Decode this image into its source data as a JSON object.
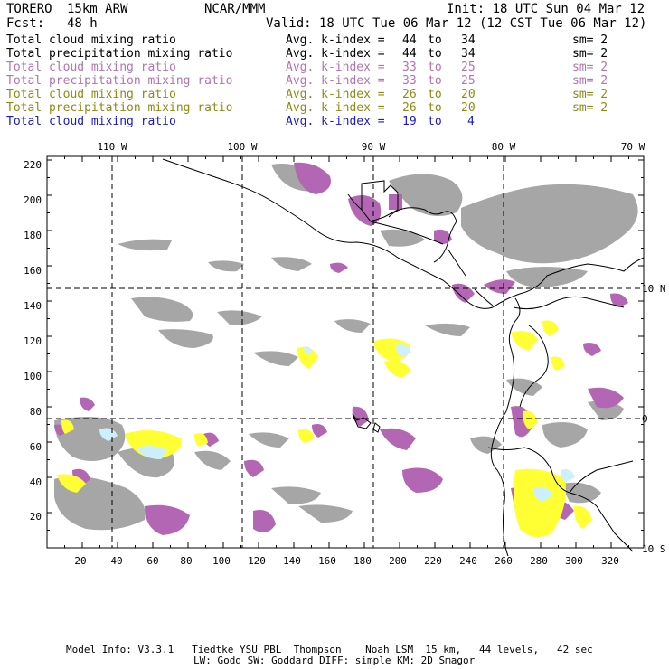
{
  "header": {
    "model": "TORERO",
    "resolution": "15km ARW",
    "institution": "NCAR/MMM",
    "init": "Init: 18 UTC Sun 04 Mar 12",
    "fcst_label": "Fcst:",
    "fcst_value": "48 h",
    "valid": "Valid: 18 UTC Tue 06 Mar 12 (12 CST Tue 06 Mar 12)"
  },
  "legend": [
    {
      "field": "Total cloud mixing ratio",
      "avg_label": "Avg. k-index =",
      "from": "44",
      "to_word": "to",
      "to": "34",
      "sm": "sm= 2",
      "color": "#000000"
    },
    {
      "field": "Total precipitation mixing ratio",
      "avg_label": "Avg. k-index =",
      "from": "44",
      "to_word": "to",
      "to": "34",
      "sm": "sm= 2",
      "color": "#000000"
    },
    {
      "field": "Total cloud mixing ratio",
      "avg_label": "Avg. k-index =",
      "from": "33",
      "to_word": "to",
      "to": "25",
      "sm": "sm= 2",
      "color": "#b373b3"
    },
    {
      "field": "Total precipitation mixing ratio",
      "avg_label": "Avg. k-index =",
      "from": "33",
      "to_word": "to",
      "to": "25",
      "sm": "sm= 2",
      "color": "#b373b3"
    },
    {
      "field": "Total cloud mixing ratio",
      "avg_label": "Avg. k-index =",
      "from": "26",
      "to_word": "to",
      "to": "20",
      "sm": "sm= 2",
      "color": "#8c8c14"
    },
    {
      "field": "Total precipitation mixing ratio",
      "avg_label": "Avg. k-index =",
      "from": "26",
      "to_word": "to",
      "to": "20",
      "sm": "sm= 2",
      "color": "#8c8c14"
    },
    {
      "field": "Total cloud mixing ratio",
      "avg_label": "Avg. k-index =",
      "from": "19",
      "to_word": "to",
      "to": "4",
      "sm": "",
      "color": "#1a1acc"
    }
  ],
  "map": {
    "x_ticks": [
      "20",
      "40",
      "60",
      "80",
      "100",
      "120",
      "140",
      "160",
      "180",
      "200",
      "220",
      "240",
      "260",
      "280",
      "300",
      "320"
    ],
    "y_ticks": [
      "20",
      "40",
      "60",
      "80",
      "100",
      "120",
      "140",
      "160",
      "180",
      "200",
      "220"
    ],
    "lon_labels": [
      "110 W",
      "100 W",
      "90 W",
      "80 W",
      "70 W"
    ],
    "lat_labels": [
      "10 N",
      "0",
      "10 S"
    ],
    "colors": {
      "gray": "#a6a6a6",
      "purple": "#b366b3",
      "yellow": "#ffff33",
      "lightblue": "#ccf0ff",
      "coast": "#000000"
    }
  },
  "footer": {
    "line1": "Model Info: V3.3.1   Tiedtke YSU PBL  Thompson    Noah LSM  15 km,   44 levels,   42 sec",
    "line2": "LW: Godd SW: Goddard DIFF: simple KM: 2D Smagor"
  }
}
